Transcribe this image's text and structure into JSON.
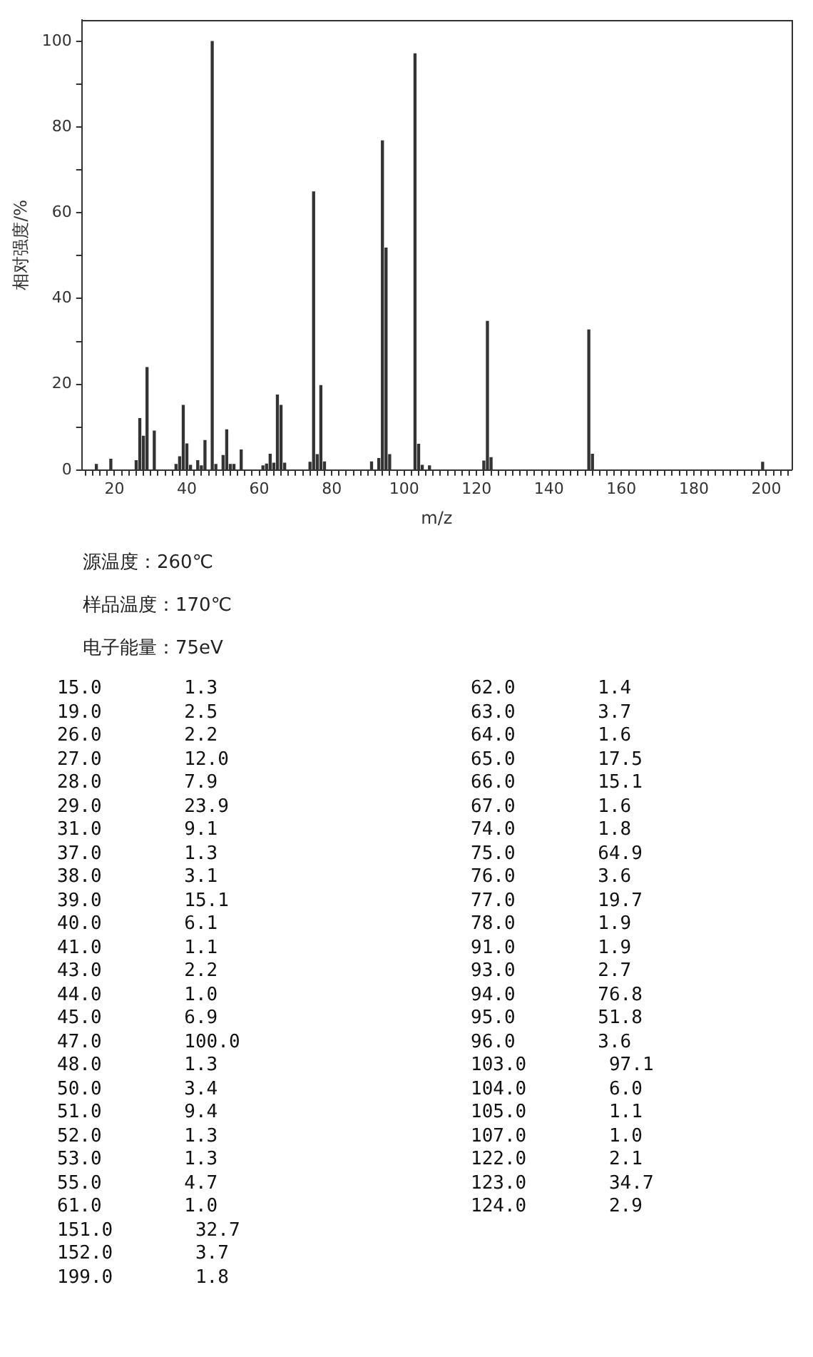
{
  "chart_data": [
    {
      "type": "bar",
      "xlabel": "m/z",
      "ylabel": "相对强度/%",
      "color": "#333333",
      "x": [
        15,
        19,
        26,
        27,
        28,
        29,
        31,
        37,
        38,
        39,
        40,
        41,
        43,
        44,
        45,
        47,
        48,
        50,
        51,
        52,
        53,
        55,
        61,
        62,
        63,
        64,
        65,
        66,
        67,
        74,
        75,
        76,
        77,
        78,
        91,
        93,
        94,
        95,
        96,
        103,
        104,
        105,
        107,
        122,
        123,
        124,
        151,
        152,
        199
      ],
      "values": [
        1.3,
        2.5,
        2.2,
        12.0,
        7.9,
        23.9,
        9.1,
        1.3,
        3.1,
        15.1,
        6.1,
        1.1,
        2.2,
        1.0,
        6.9,
        100.0,
        1.3,
        3.4,
        9.4,
        1.3,
        1.3,
        4.7,
        1.0,
        1.4,
        3.7,
        1.6,
        17.5,
        15.1,
        1.6,
        1.8,
        64.9,
        3.6,
        19.7,
        1.9,
        1.9,
        2.7,
        76.8,
        51.8,
        3.6,
        97.1,
        6.0,
        1.1,
        1.0,
        2.1,
        34.7,
        2.9,
        32.7,
        3.7,
        1.8
      ],
      "xlim": [
        11,
        207
      ],
      "ylim": [
        0,
        105
      ],
      "xticks": [
        {
          "value": 12,
          "label": null
        },
        {
          "value": 14,
          "label": null
        },
        {
          "value": 16,
          "label": null
        },
        {
          "value": 18,
          "label": null
        },
        20,
        {
          "value": 22,
          "label": null
        },
        {
          "value": 24,
          "label": null
        },
        {
          "value": 26,
          "label": null
        },
        {
          "value": 28,
          "label": null
        },
        {
          "value": 30,
          "label": null
        },
        {
          "value": 32,
          "label": null
        },
        {
          "value": 34,
          "label": null
        },
        {
          "value": 36,
          "label": null
        },
        {
          "value": 38,
          "label": null
        },
        40,
        {
          "value": 42,
          "label": null
        },
        {
          "value": 44,
          "label": null
        },
        {
          "value": 46,
          "label": null
        },
        {
          "value": 48,
          "label": null
        },
        {
          "value": 50,
          "label": null
        },
        {
          "value": 52,
          "label": null
        },
        {
          "value": 54,
          "label": null
        },
        {
          "value": 56,
          "label": null
        },
        {
          "value": 58,
          "label": null
        },
        60,
        {
          "value": 62,
          "label": null
        },
        {
          "value": 64,
          "label": null
        },
        {
          "value": 66,
          "label": null
        },
        {
          "value": 68,
          "label": null
        },
        {
          "value": 70,
          "label": null
        },
        {
          "value": 72,
          "label": null
        },
        {
          "value": 74,
          "label": null
        },
        {
          "value": 76,
          "label": null
        },
        {
          "value": 78,
          "label": null
        },
        80,
        {
          "value": 82,
          "label": null
        },
        {
          "value": 84,
          "label": null
        },
        {
          "value": 86,
          "label": null
        },
        {
          "value": 88,
          "label": null
        },
        {
          "value": 90,
          "label": null
        },
        {
          "value": 92,
          "label": null
        },
        {
          "value": 94,
          "label": null
        },
        {
          "value": 96,
          "label": null
        },
        {
          "value": 98,
          "label": null
        },
        100,
        {
          "value": 102,
          "label": null
        },
        {
          "value": 104,
          "label": null
        },
        {
          "value": 106,
          "label": null
        },
        {
          "value": 108,
          "label": null
        },
        {
          "value": 110,
          "label": null
        },
        {
          "value": 112,
          "label": null
        },
        {
          "value": 114,
          "label": null
        },
        {
          "value": 116,
          "label": null
        },
        {
          "value": 118,
          "label": null
        },
        120,
        {
          "value": 122,
          "label": null
        },
        {
          "value": 124,
          "label": null
        },
        {
          "value": 126,
          "label": null
        },
        {
          "value": 128,
          "label": null
        },
        {
          "value": 130,
          "label": null
        },
        {
          "value": 132,
          "label": null
        },
        {
          "value": 134,
          "label": null
        },
        {
          "value": 136,
          "label": null
        },
        {
          "value": 138,
          "label": null
        },
        140,
        {
          "value": 142,
          "label": null
        },
        {
          "value": 144,
          "label": null
        },
        {
          "value": 146,
          "label": null
        },
        {
          "value": 148,
          "label": null
        },
        {
          "value": 150,
          "label": null
        },
        {
          "value": 152,
          "label": null
        },
        {
          "value": 154,
          "label": null
        },
        {
          "value": 156,
          "label": null
        },
        {
          "value": 158,
          "label": null
        },
        160,
        {
          "value": 162,
          "label": null
        },
        {
          "value": 164,
          "label": null
        },
        {
          "value": 166,
          "label": null
        },
        {
          "value": 168,
          "label": null
        },
        {
          "value": 170,
          "label": null
        },
        {
          "value": 172,
          "label": null
        },
        {
          "value": 174,
          "label": null
        },
        {
          "value": 176,
          "label": null
        },
        {
          "value": 178,
          "label": null
        },
        180,
        {
          "value": 182,
          "label": null
        },
        {
          "value": 184,
          "label": null
        },
        {
          "value": 186,
          "label": null
        },
        {
          "value": 188,
          "label": null
        },
        {
          "value": 190,
          "label": null
        },
        {
          "value": 192,
          "label": null
        },
        {
          "value": 194,
          "label": null
        },
        {
          "value": 196,
          "label": null
        },
        {
          "value": 198,
          "label": null
        },
        200,
        {
          "value": 202,
          "label": null
        },
        {
          "value": 204,
          "label": null
        },
        {
          "value": 206,
          "label": null
        }
      ],
      "yticks": [
        0,
        {
          "value": 10,
          "label": null
        },
        20,
        {
          "value": 30,
          "label": null
        },
        40,
        {
          "value": 50,
          "label": null
        },
        60,
        {
          "value": 70,
          "label": null
        },
        80,
        {
          "value": 90,
          "label": null
        },
        100
      ],
      "grid": false,
      "annotations": [
        "源温度：260℃",
        "样品温度：170℃",
        "电子能量：75eV"
      ]
    },
    {
      "type": "other",
      "annotations": [
        "15.0 1.3",
        "19.0 2.5",
        "26.0 2.2",
        "27.0 12.0",
        "28.0 7.9",
        "29.0 23.9",
        "31.0 9.1",
        "37.0 1.3",
        "38.0 3.1",
        "39.0 15.1",
        "40.0 6.1",
        "41.0 1.1",
        "43.0 2.2",
        "44.0 1.0",
        "45.0 6.9",
        "47.0 100.0",
        "48.0 1.3",
        "50.0 3.4",
        "51.0 9.4",
        "52.0 1.3",
        "53.0 1.3",
        "55.0 4.7",
        "61.0 1.0",
        "151.0 32.7",
        "152.0 3.7",
        "199.0 1.8",
        "62.0 1.4",
        "63.0 3.7",
        "64.0 1.6",
        "65.0 17.5",
        "66.0 15.1",
        "67.0 1.6",
        "74.0 1.8",
        "75.0 64.9",
        "76.0 3.6",
        "77.0 19.7",
        "78.0 1.9",
        "91.0 1.9",
        "93.0 2.7",
        "94.0 76.8",
        "95.0 51.8",
        "96.0 3.6",
        "103.0 97.1",
        "104.0 6.0",
        "105.0 1.1",
        "107.0 1.0",
        "122.0 2.1",
        "123.0 34.7",
        "124.0 2.9"
      ]
    }
  ]
}
